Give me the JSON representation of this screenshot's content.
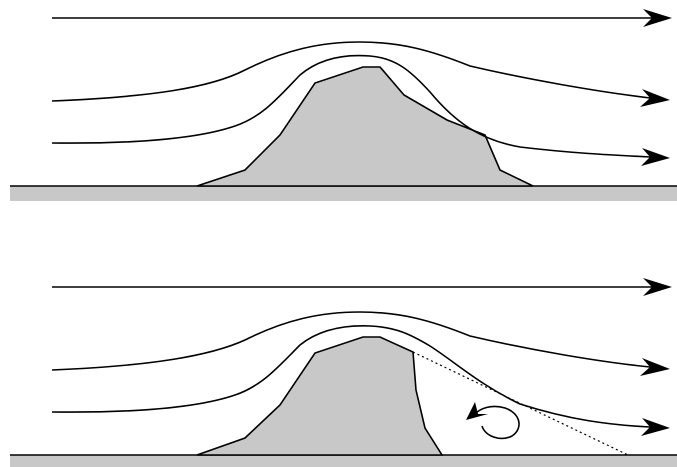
{
  "diagram": {
    "panels": [
      {
        "id": "attached-flow",
        "streamline_count": 3,
        "has_separation": false
      },
      {
        "id": "separated-flow",
        "streamline_count": 3,
        "has_separation": true,
        "has_recirculation_eddy": true
      }
    ],
    "colors": {
      "hill_fill": "#c8c8c8",
      "ground_fill": "#c8c8c8",
      "line": "#000000",
      "background": "#ffffff"
    }
  }
}
